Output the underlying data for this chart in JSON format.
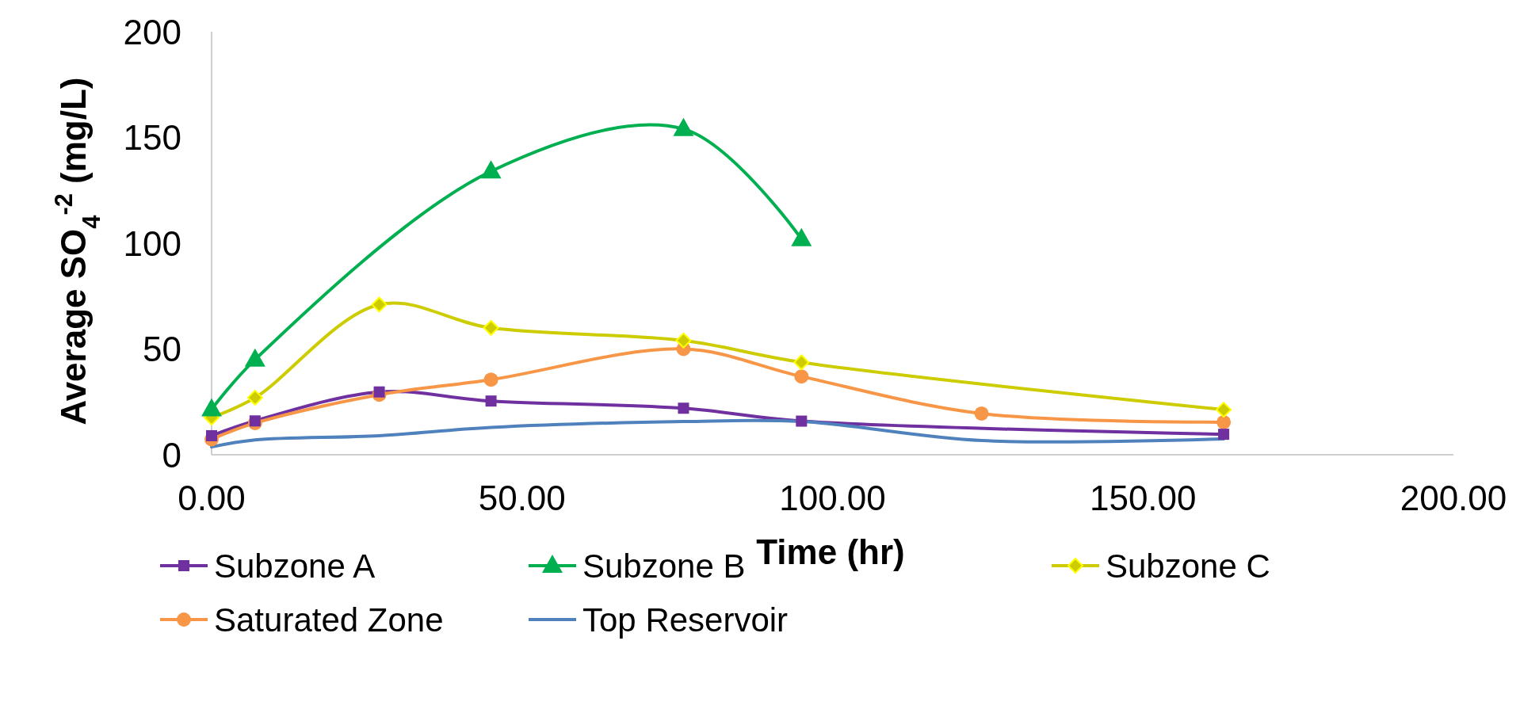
{
  "chart_data": {
    "type": "line",
    "xlabel": "Time (hr)",
    "ylabel": "Average SO$_{4}$$^{-2}$ (mg/L)",
    "xlim": [
      0,
      200
    ],
    "xticks": [
      {
        "value": 0,
        "label": "0.00"
      },
      {
        "value": 50,
        "label": "50.00"
      },
      {
        "value": 100,
        "label": "100.00"
      },
      {
        "value": 150,
        "label": "150.00"
      },
      {
        "value": 200,
        "label": "200.00"
      }
    ],
    "ylim": [
      0,
      200
    ],
    "yticks": [
      0,
      50,
      100,
      150,
      200
    ],
    "grid": false,
    "legend": "bottom",
    "line_style": "solid",
    "series": [
      {
        "name": "Subzone A",
        "color": "#7030a0",
        "marker": "square",
        "x": [
          0,
          7,
          27,
          45,
          76,
          95,
          163
        ],
        "values": [
          9,
          16,
          29.7,
          25.4,
          22,
          15.9,
          9.7
        ]
      },
      {
        "name": "Subzone B",
        "color": "#00b050",
        "marker": "triangle",
        "x": [
          0,
          7,
          45,
          76,
          95
        ],
        "values": [
          21.5,
          45,
          134,
          154,
          102
        ]
      },
      {
        "name": "Subzone C",
        "color": "#cccc00",
        "marker": "diamond",
        "x": [
          0,
          7,
          27,
          45,
          76,
          95,
          163
        ],
        "values": [
          17.6,
          27,
          71,
          60,
          54,
          43.7,
          21.3
        ]
      },
      {
        "name": "Saturated Zone",
        "color": "#f79646",
        "marker": "circle",
        "x": [
          0,
          7,
          27,
          45,
          76,
          95,
          124,
          163
        ],
        "values": [
          7.3,
          15,
          28.4,
          35.5,
          50,
          37,
          19.5,
          15.4
        ]
      },
      {
        "name": "Top Reservoir",
        "color": "#4f81bd",
        "marker": "none",
        "x": [
          0,
          7,
          27,
          45,
          76,
          95,
          124,
          163
        ],
        "values": [
          3.7,
          7,
          9,
          12.9,
          15.7,
          15.7,
          6.7,
          7.5
        ]
      }
    ]
  }
}
